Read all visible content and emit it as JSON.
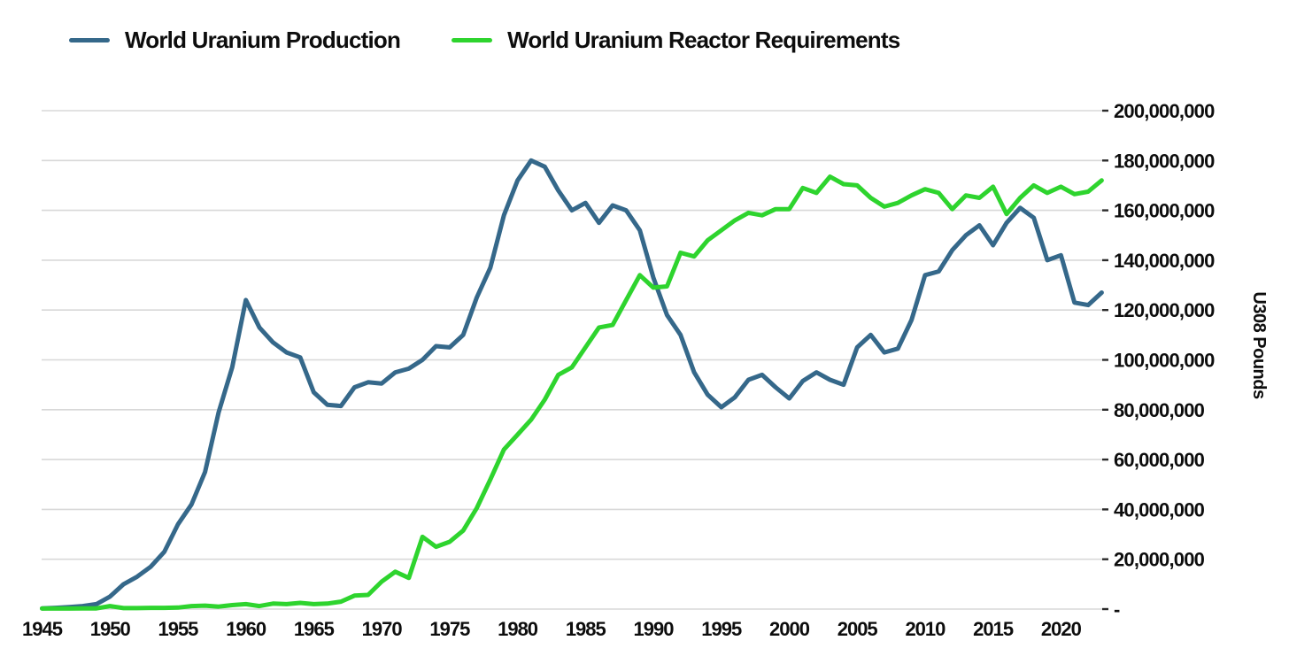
{
  "legend": {
    "items": [
      {
        "label": "World Uranium Production",
        "color": "#35688a"
      },
      {
        "label": "World Uranium Reactor Requirements",
        "color": "#2ed42e"
      }
    ]
  },
  "colors": {
    "production_line": "#35688a",
    "requirements_line": "#2ed42e",
    "gridline": "#d8d8d8",
    "tick": "#2b2b2b",
    "text": "#0d0d0d",
    "background": "#ffffff"
  },
  "chart_data": {
    "type": "line",
    "title": "",
    "xlabel": "",
    "ylabel": "U308 Pounds",
    "grid": true,
    "legend_position": "top-left",
    "ylim": [
      0,
      200000000
    ],
    "ytick_step": 20000000,
    "ytick_labels_bottom_to_top": [
      "-",
      "20,000,000",
      "40,000,000",
      "60,000,000",
      "80,000,000",
      "100,000,000",
      "120,000,000",
      "140,000,000",
      "160,000,000",
      "180,000,000",
      "200,000,000"
    ],
    "xtick_labels": [
      "1945",
      "1950",
      "1955",
      "1960",
      "1965",
      "1970",
      "1975",
      "1980",
      "1985",
      "1990",
      "1995",
      "2000",
      "2005",
      "2010",
      "2015",
      "2020"
    ],
    "x": [
      1945,
      1946,
      1947,
      1948,
      1949,
      1950,
      1951,
      1952,
      1953,
      1954,
      1955,
      1956,
      1957,
      1958,
      1959,
      1960,
      1961,
      1962,
      1963,
      1964,
      1965,
      1966,
      1967,
      1968,
      1969,
      1970,
      1971,
      1972,
      1973,
      1974,
      1975,
      1976,
      1977,
      1978,
      1979,
      1980,
      1981,
      1982,
      1983,
      1984,
      1985,
      1986,
      1987,
      1988,
      1989,
      1990,
      1991,
      1992,
      1993,
      1994,
      1995,
      1996,
      1997,
      1998,
      1999,
      2000,
      2001,
      2002,
      2003,
      2004,
      2005,
      2006,
      2007,
      2008,
      2009,
      2010,
      2011,
      2012,
      2013,
      2014,
      2015,
      2016,
      2017,
      2018,
      2019,
      2020,
      2021,
      2022,
      2023
    ],
    "series": [
      {
        "name": "World Uranium Production",
        "id": "production-line",
        "color": "#35688a",
        "values": [
          300000,
          500000,
          800000,
          1200000,
          2000000,
          5000000,
          10000000,
          13000000,
          17000000,
          23000000,
          34000000,
          42000000,
          55000000,
          79000000,
          97000000,
          124000000,
          113000000,
          107000000,
          103000000,
          101000000,
          87000000,
          82000000,
          81500000,
          89000000,
          91000000,
          90500000,
          95000000,
          96500000,
          100000000,
          105500000,
          105000000,
          110000000,
          125000000,
          137000000,
          158000000,
          172000000,
          180000000,
          177500000,
          168000000,
          160000000,
          163000000,
          155000000,
          162000000,
          160000000,
          152000000,
          133000000,
          118000000,
          110000000,
          95000000,
          86000000,
          81000000,
          85000000,
          92000000,
          94000000,
          89000000,
          84500000,
          91500000,
          95000000,
          92000000,
          90000000,
          105000000,
          110000000,
          103000000,
          104500000,
          116000000,
          134000000,
          135500000,
          144000000,
          150000000,
          154000000,
          146000000,
          155000000,
          161000000,
          157000000,
          140000000,
          142000000,
          123000000,
          122000000,
          127000000
        ]
      },
      {
        "name": "World Uranium Reactor Requirements",
        "id": "requirements-line",
        "color": "#2ed42e",
        "values": [
          200000,
          200000,
          200000,
          300000,
          300000,
          1200000,
          400000,
          400000,
          500000,
          500000,
          600000,
          1200000,
          1400000,
          1000000,
          1600000,
          2000000,
          1200000,
          2200000,
          2000000,
          2500000,
          2000000,
          2200000,
          3000000,
          5400000,
          5700000,
          11000000,
          15000000,
          12500000,
          29000000,
          25000000,
          27000000,
          31500000,
          40500000,
          52000000,
          64000000,
          70000000,
          76000000,
          84000000,
          94000000,
          97000000,
          105000000,
          113000000,
          114000000,
          124000000,
          134000000,
          129000000,
          129500000,
          143000000,
          141500000,
          148000000,
          152000000,
          156000000,
          159000000,
          158000000,
          160500000,
          160500000,
          169000000,
          167000000,
          173500000,
          170500000,
          170000000,
          165000000,
          161500000,
          163000000,
          166000000,
          168500000,
          167000000,
          160500000,
          166000000,
          165000000,
          169500000,
          158500000,
          165000000,
          170000000,
          167000000,
          169500000,
          166500000,
          167500000,
          172000000
        ]
      }
    ]
  }
}
